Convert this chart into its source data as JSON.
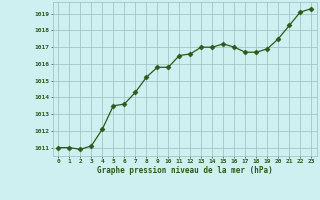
{
  "x": [
    0,
    1,
    2,
    3,
    4,
    5,
    6,
    7,
    8,
    9,
    10,
    11,
    12,
    13,
    14,
    15,
    16,
    17,
    18,
    19,
    20,
    21,
    22,
    23
  ],
  "y": [
    1011.0,
    1011.0,
    1010.9,
    1011.1,
    1012.1,
    1013.5,
    1013.6,
    1014.3,
    1015.2,
    1015.8,
    1015.8,
    1016.5,
    1016.6,
    1017.0,
    1017.0,
    1017.2,
    1017.0,
    1016.7,
    1016.7,
    1016.9,
    1017.5,
    1018.3,
    1019.1,
    1019.3
  ],
  "line_color": "#2d5a1b",
  "marker": "D",
  "marker_size": 2.5,
  "bg_color": "#cef0f0",
  "grid_color": "#9abfbf",
  "xlabel": "Graphe pression niveau de la mer (hPa)",
  "xlabel_color": "#2d5a1b",
  "tick_label_color": "#2d5a1b",
  "ylim_min": 1010.5,
  "ylim_max": 1019.7,
  "xlim_min": -0.5,
  "xlim_max": 23.5,
  "yticks": [
    1011,
    1012,
    1013,
    1014,
    1015,
    1016,
    1017,
    1018,
    1019
  ],
  "xticks": [
    0,
    1,
    2,
    3,
    4,
    5,
    6,
    7,
    8,
    9,
    10,
    11,
    12,
    13,
    14,
    15,
    16,
    17,
    18,
    19,
    20,
    21,
    22,
    23
  ]
}
